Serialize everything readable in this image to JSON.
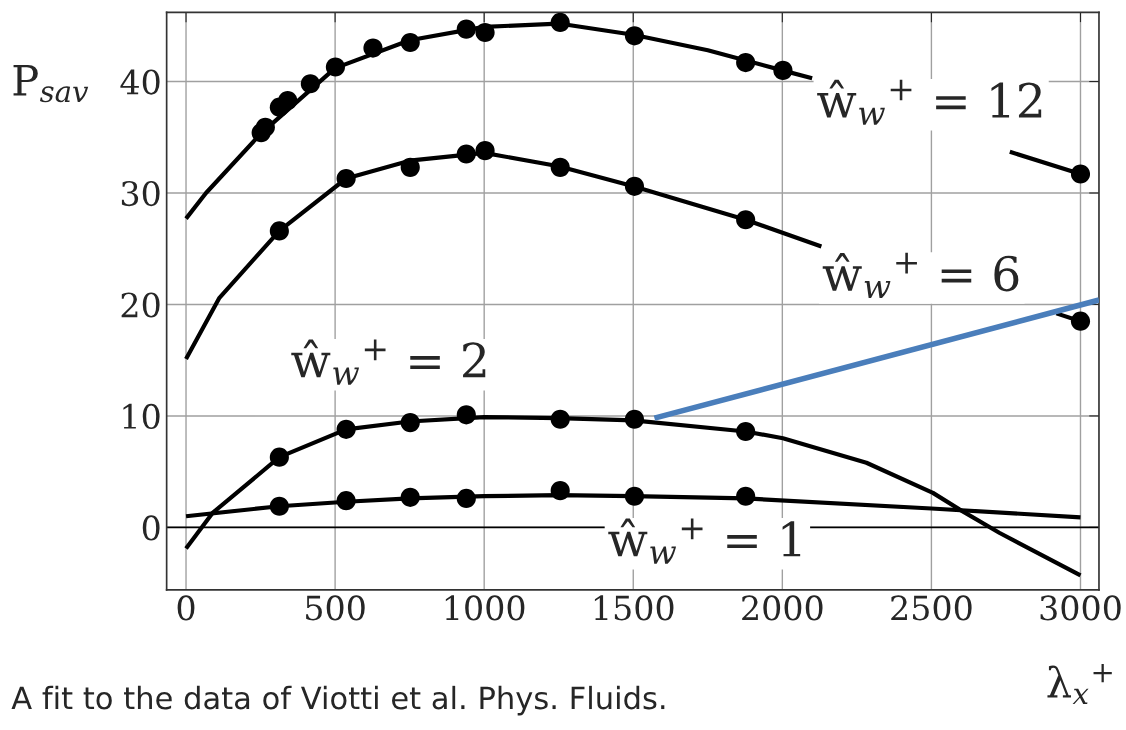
{
  "chart_data": {
    "type": "line",
    "xlabel": "λ$_{x}$$^{+}$",
    "ylabel": "P$_{sav}$",
    "xlim": [
      -65,
      3062
    ],
    "ylim": [
      -5.6,
      46.2
    ],
    "xticks": [
      0,
      500,
      1000,
      1500,
      2000,
      2500,
      3000
    ],
    "yticks": [
      0,
      10,
      20,
      30,
      40
    ],
    "grid": true,
    "legend": false,
    "ref_lines": [
      {
        "axis": "y",
        "value": 0,
        "color": "#000000"
      }
    ],
    "series": [
      {
        "type": "scatter",
        "marker": "circle",
        "color": "#000000",
        "x": [
          252,
          266,
          313,
          341,
          417,
          501,
          627,
          752,
          940,
          1003,
          1255,
          1504,
          1877,
          2002,
          3000
        ],
        "values": [
          35.4,
          35.9,
          37.7,
          38.3,
          39.8,
          41.3,
          43.0,
          43.5,
          44.7,
          44.4,
          45.3,
          44.1,
          41.7,
          41.0,
          31.7
        ]
      },
      {
        "marker": "none",
        "color": "#000000",
        "x": [
          0,
          67,
          250,
          500,
          750,
          1000,
          1250,
          1500,
          1750,
          2000,
          2100,
          2400,
          2763,
          3000
        ],
        "values": [
          27.7,
          30.0,
          35.3,
          41.2,
          43.7,
          44.9,
          45.2,
          44.2,
          42.8,
          41.0,
          40.3,
          null,
          33.7,
          31.7
        ]
      },
      {
        "type": "scatter",
        "marker": "circle",
        "color": "#000000",
        "x": [
          313,
          537,
          752,
          940,
          1003,
          1255,
          1504,
          1877,
          3000
        ],
        "values": [
          26.6,
          31.3,
          32.3,
          33.5,
          33.8,
          32.3,
          30.6,
          27.6,
          18.5
        ]
      },
      {
        "marker": "none",
        "color": "#000000",
        "x": [
          0,
          112,
          313,
          537,
          750,
          1000,
          1250,
          1500,
          1877,
          2131,
          2500,
          2919,
          3000
        ],
        "values": [
          15.1,
          20.6,
          26.6,
          31.3,
          32.9,
          33.6,
          32.4,
          30.6,
          27.6,
          25.2,
          null,
          19.2,
          18.5
        ]
      },
      {
        "type": "scatter",
        "marker": "circle",
        "color": "#000000",
        "x": [
          313,
          537,
          752,
          940,
          1255,
          1504,
          1877
        ],
        "values": [
          6.3,
          8.8,
          9.4,
          10.1,
          9.7,
          9.7,
          8.6
        ]
      },
      {
        "marker": "none",
        "color": "#000000",
        "x": [
          0,
          89,
          313,
          537,
          750,
          1000,
          1250,
          1500,
          1877,
          2002,
          2282,
          2505,
          2595,
          2729,
          3000
        ],
        "values": [
          -1.9,
          1.3,
          6.3,
          8.8,
          9.5,
          9.9,
          9.8,
          9.6,
          8.6,
          8.0,
          5.8,
          3.1,
          1.6,
          -0.5,
          -4.3
        ]
      },
      {
        "type": "scatter",
        "marker": "circle",
        "color": "#000000",
        "x": [
          313,
          537,
          752,
          940,
          1255,
          1504,
          1877
        ],
        "values": [
          1.9,
          2.4,
          2.7,
          2.6,
          3.3,
          2.8,
          2.8
        ]
      },
      {
        "marker": "none",
        "color": "#000000",
        "x": [
          0,
          313,
          537,
          750,
          1000,
          1250,
          1500,
          1877,
          2500,
          3000
        ],
        "values": [
          1.0,
          1.9,
          2.3,
          2.6,
          2.8,
          2.9,
          2.8,
          2.6,
          1.7,
          0.9
        ]
      },
      {
        "marker": "none",
        "color": "#4a7ebb",
        "x": [
          1571,
          3062
        ],
        "values": [
          9.8,
          20.4
        ]
      }
    ],
    "annotations": [
      "ŵ$_{w}$$^{+}$ = 12",
      "ŵ$_{w}$$^{+}$ = 6",
      "ŵ$_{w}$$^{+}$ = 2",
      "ŵ$_{w}$$^{+}$ = 1",
      "A fit to the data of Viotti et al. Phys. Fluids."
    ]
  }
}
